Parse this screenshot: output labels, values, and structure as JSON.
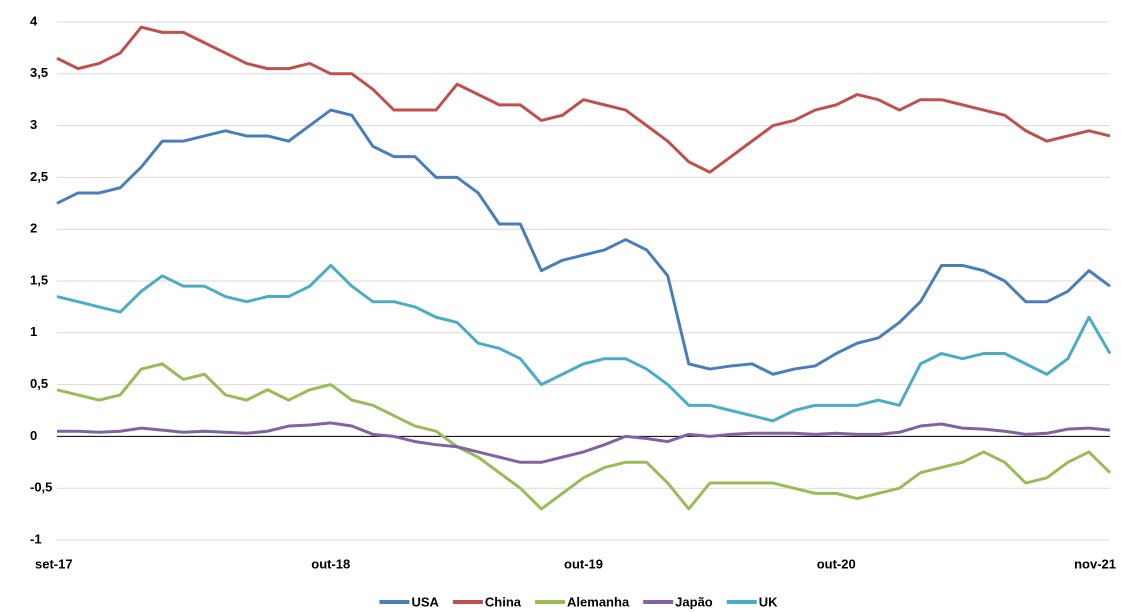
{
  "chart_data": {
    "type": "line",
    "categories": [
      "set-17",
      null,
      null,
      null,
      null,
      null,
      null,
      null,
      null,
      null,
      null,
      null,
      null,
      "out-18",
      null,
      null,
      null,
      null,
      null,
      null,
      null,
      null,
      null,
      null,
      null,
      "out-19",
      null,
      null,
      null,
      null,
      null,
      null,
      null,
      null,
      null,
      null,
      null,
      "out-20",
      null,
      null,
      null,
      null,
      null,
      null,
      null,
      null,
      null,
      null,
      null,
      null,
      "nov-21"
    ],
    "series": [
      {
        "name": "USA",
        "color": "#4a7ebb",
        "values": [
          2.25,
          2.35,
          2.35,
          2.4,
          2.6,
          2.85,
          2.85,
          2.9,
          2.95,
          2.9,
          2.9,
          2.85,
          3.0,
          3.15,
          3.1,
          2.8,
          2.7,
          2.7,
          2.5,
          2.5,
          2.35,
          2.05,
          2.05,
          1.6,
          1.7,
          1.75,
          1.8,
          1.9,
          1.8,
          1.55,
          0.7,
          0.65,
          0.68,
          0.7,
          0.6,
          0.65,
          0.68,
          0.8,
          0.9,
          0.95,
          1.1,
          1.3,
          1.65,
          1.65,
          1.6,
          1.5,
          1.3,
          1.3,
          1.4,
          1.6,
          1.45
        ]
      },
      {
        "name": "China",
        "color": "#c0504d",
        "values": [
          3.65,
          3.55,
          3.6,
          3.7,
          3.95,
          3.9,
          3.9,
          3.8,
          3.7,
          3.6,
          3.55,
          3.55,
          3.6,
          3.5,
          3.5,
          3.35,
          3.15,
          3.15,
          3.15,
          3.4,
          3.3,
          3.2,
          3.2,
          3.05,
          3.1,
          3.25,
          3.2,
          3.15,
          3.0,
          2.85,
          2.65,
          2.55,
          2.7,
          2.85,
          3.0,
          3.05,
          3.15,
          3.2,
          3.3,
          3.25,
          3.15,
          3.25,
          3.25,
          3.2,
          3.15,
          3.1,
          2.95,
          2.85,
          2.9,
          2.95,
          2.9
        ]
      },
      {
        "name": "Alemanha",
        "color": "#9bbb59",
        "values": [
          0.45,
          0.4,
          0.35,
          0.4,
          0.65,
          0.7,
          0.55,
          0.6,
          0.4,
          0.35,
          0.45,
          0.35,
          0.45,
          0.5,
          0.35,
          0.3,
          0.2,
          0.1,
          0.05,
          -0.1,
          -0.2,
          -0.35,
          -0.5,
          -0.7,
          -0.55,
          -0.4,
          -0.3,
          -0.25,
          -0.25,
          -0.45,
          -0.7,
          -0.45,
          -0.45,
          -0.45,
          -0.45,
          -0.5,
          -0.55,
          -0.55,
          -0.6,
          -0.55,
          -0.5,
          -0.35,
          -0.3,
          -0.25,
          -0.15,
          -0.25,
          -0.45,
          -0.4,
          -0.25,
          -0.15,
          -0.35
        ]
      },
      {
        "name": "Japão",
        "color": "#8064a2",
        "values": [
          0.05,
          0.05,
          0.04,
          0.05,
          0.08,
          0.06,
          0.04,
          0.05,
          0.04,
          0.03,
          0.05,
          0.1,
          0.11,
          0.13,
          0.1,
          0.02,
          0.0,
          -0.05,
          -0.08,
          -0.1,
          -0.15,
          -0.2,
          -0.25,
          -0.25,
          -0.2,
          -0.15,
          -0.08,
          0.0,
          -0.02,
          -0.05,
          0.02,
          0.0,
          0.02,
          0.03,
          0.03,
          0.03,
          0.02,
          0.03,
          0.02,
          0.02,
          0.04,
          0.1,
          0.12,
          0.08,
          0.07,
          0.05,
          0.02,
          0.03,
          0.07,
          0.08,
          0.06
        ]
      },
      {
        "name": "UK",
        "color": "#4bacc6",
        "values": [
          1.35,
          1.3,
          1.25,
          1.2,
          1.4,
          1.55,
          1.45,
          1.45,
          1.35,
          1.3,
          1.35,
          1.35,
          1.45,
          1.65,
          1.45,
          1.3,
          1.3,
          1.25,
          1.15,
          1.1,
          0.9,
          0.85,
          0.75,
          0.5,
          0.6,
          0.7,
          0.75,
          0.75,
          0.65,
          0.5,
          0.3,
          0.3,
          0.25,
          0.2,
          0.15,
          0.25,
          0.3,
          0.3,
          0.3,
          0.35,
          0.3,
          0.7,
          0.8,
          0.75,
          0.8,
          0.8,
          0.7,
          0.6,
          0.75,
          1.15,
          0.8
        ]
      }
    ],
    "ylim": [
      -1,
      4
    ],
    "yticks": [
      -1,
      {
        "value": -0.5,
        "label": "-0,5"
      },
      0,
      {
        "value": 0.5,
        "label": "0,5"
      },
      1,
      {
        "value": 1.5,
        "label": "1,5"
      },
      2,
      {
        "value": 2.5,
        "label": "2,5"
      },
      3,
      {
        "value": 3.5,
        "label": "3,5"
      },
      4
    ],
    "grid": true,
    "legend": "bottom"
  }
}
